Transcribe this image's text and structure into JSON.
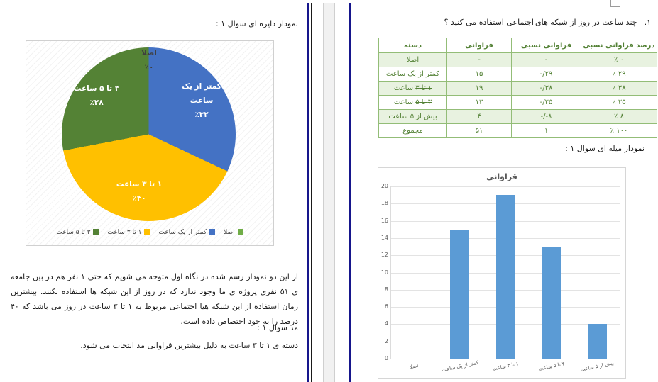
{
  "chart_data": [
    {
      "type": "pie",
      "title": "",
      "categories": [
        "اصلا",
        "کمتر از یک ساعت",
        "۱ تا ۳ ساعت",
        "۳ تا ۵ ساعت"
      ],
      "values": [
        0,
        32,
        40,
        28
      ],
      "percent_labels": [
        "٪۰",
        "٪۳۲",
        "٪۴۰",
        "٪۲۸"
      ],
      "colors": [
        "#70AD47",
        "#4472C4",
        "#FFC000",
        "#548235"
      ],
      "legend_position": "bottom",
      "start_angle_deg": 0,
      "direction": "clockwise"
    },
    {
      "type": "bar",
      "title": "قراوانی",
      "categories": [
        "اصلا",
        "کمتر از یک ساعت",
        "۱ تا ۳ ساعت",
        "۳ تا ۵ ساعت",
        "بیش از ۵ ساعت"
      ],
      "values": [
        0,
        15,
        19,
        13,
        4
      ],
      "xlabel": "",
      "ylabel": "",
      "ylim": [
        0,
        20
      ],
      "ytick_step": 2,
      "grid": true,
      "bar_color": "#5B9BD5"
    }
  ],
  "pages": {
    "right": {
      "question_number": "۱.",
      "question_text_before": "چند ساعت در روز از شبکه های",
      "question_text_after": "اجتماعی استفاده می کنید ؟",
      "table": {
        "headers": [
          "دسته",
          "قراوانی",
          "فراوانی نسبی",
          "درصد قراوانی نسبی"
        ],
        "rows": [
          {
            "category": "اصلا",
            "category_strike": "",
            "frequency": "-",
            "relative": "-",
            "percent": "٪ ۰"
          },
          {
            "category": "کمتر از یک ساعت",
            "category_strike": "",
            "frequency": "۱۵",
            "relative": "-/۲۹",
            "percent": "٪ ۲۹"
          },
          {
            "category": "ساعت",
            "category_strike": "۱ تا ۳",
            "frequency": "۱۹",
            "relative": "-/۳۸",
            "percent": "٪ ۳۸"
          },
          {
            "category": "ساعت",
            "category_strike": "۳ تا ۵",
            "frequency": "۱۳",
            "relative": "-/۲۵",
            "percent": "٪ ۲۵"
          },
          {
            "category": "بیش از ۵ ساعت",
            "category_strike": "",
            "frequency": "۴",
            "relative": "-/-۸",
            "percent": "٪ ۸"
          },
          {
            "category": "مجموع",
            "category_strike": "",
            "frequency": "۵۱",
            "relative": "۱",
            "percent": "٪ ۱۰۰"
          }
        ]
      },
      "bar_section_title": "نمودار میله ای سوال ۱ :"
    },
    "left": {
      "pie_section_title": "نمودار دایره ای سوال ۱ :",
      "analysis": "از این دو نمودار رسم شده در نگاه اول متوجه می شویم که حتی ۱ نفر هم در بین جامعه ی ۵۱ نفری پروژه ی ما وجود ندارد که در روز از این شبکه ها استفاده نکنند. بیشترین زمان استفاده از این شبکه هیا اجتماعی مربوط به ۱ تا ۳ ساعت در روز می باشد که ۴۰ درصد را به خود اختصاص داده است.",
      "mode_label": "مد سوال ۱ :",
      "mode_text": "دسته ی ۱ تا ۳ ساعت به دلیل بیشترین قراوانی مد انتخاب می شود."
    }
  },
  "decor": {
    "page_border_navy": "#16168C",
    "page_border_black": "#1a1a1a",
    "table_border_green": "#93BD77",
    "table_text_green": "#538135",
    "table_row_fill": "#E8F2E0",
    "chart_axis_gray": "#595959"
  }
}
